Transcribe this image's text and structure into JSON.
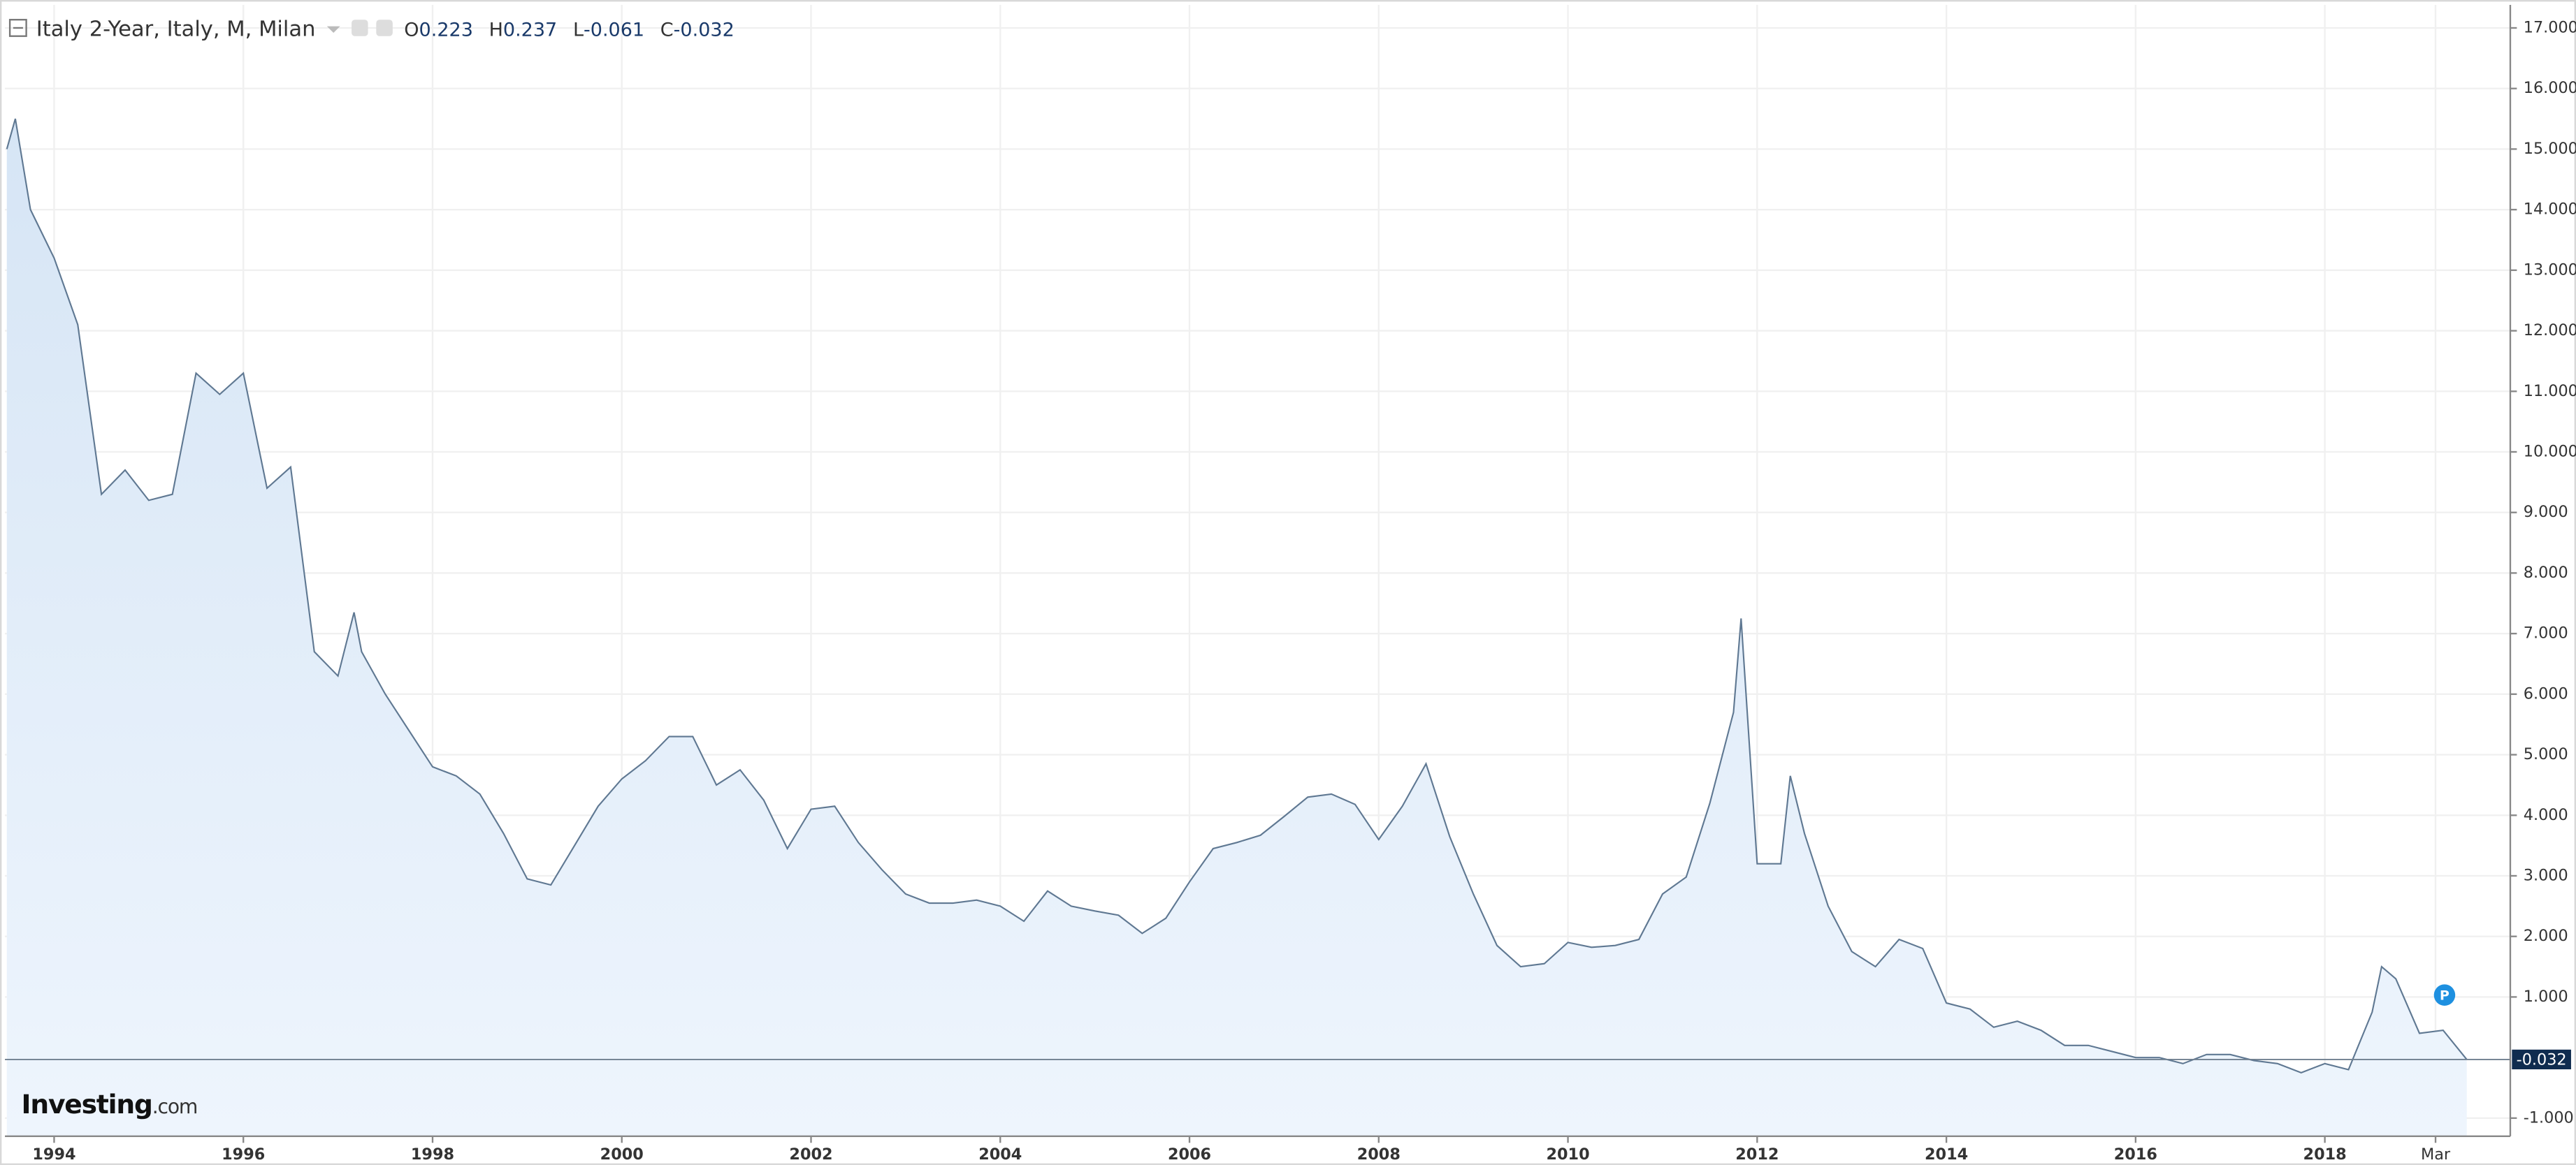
{
  "chart_data": {
    "type": "area",
    "title": "Italy 2-Year, Italy, M, Milan",
    "ohlc_labels": [
      "O",
      "H",
      "L",
      "C"
    ],
    "ohlc": [
      0.223,
      0.237,
      -0.061,
      -0.032
    ],
    "logo": [
      "Investing",
      ".com"
    ],
    "badge": "P",
    "color": "#5f7892",
    "fill": "#e3eefa",
    "grid": true,
    "x": [
      1993.5,
      1993.59,
      1993.75,
      1994,
      1994.25,
      1994.5,
      1994.75,
      1995,
      1995.25,
      1995.5,
      1995.75,
      1996,
      1996.25,
      1996.5,
      1996.75,
      1997,
      1997.17,
      1997.25,
      1997.5,
      1997.75,
      1998,
      1998.25,
      1998.5,
      1998.75,
      1999,
      1999.25,
      1999.5,
      1999.75,
      2000,
      2000.25,
      2000.5,
      2000.75,
      2001,
      2001.25,
      2001.5,
      2001.75,
      2002,
      2002.25,
      2002.5,
      2002.75,
      2003,
      2003.25,
      2003.5,
      2003.75,
      2004,
      2004.25,
      2004.5,
      2004.75,
      2005,
      2005.25,
      2005.5,
      2005.75,
      2006,
      2006.25,
      2006.5,
      2006.75,
      2007,
      2007.25,
      2007.5,
      2007.75,
      2008,
      2008.25,
      2008.5,
      2008.75,
      2009,
      2009.25,
      2009.5,
      2009.75,
      2010,
      2010.25,
      2010.5,
      2010.75,
      2011,
      2011.25,
      2011.5,
      2011.75,
      2011.83,
      2012,
      2012.25,
      2012.35,
      2012.5,
      2012.75,
      2013,
      2013.25,
      2013.5,
      2013.75,
      2014,
      2014.25,
      2014.5,
      2014.75,
      2015,
      2015.25,
      2015.5,
      2015.75,
      2016,
      2016.25,
      2016.5,
      2016.75,
      2017,
      2017.25,
      2017.5,
      2017.75,
      2018,
      2018.25,
      2018.5,
      2018.6,
      2018.75,
      2019,
      2019.25,
      2019.5
    ],
    "values": [
      15.0,
      15.5,
      14.0,
      13.2,
      12.1,
      9.3,
      9.7,
      9.2,
      9.3,
      11.3,
      10.95,
      11.3,
      9.4,
      9.75,
      6.7,
      6.3,
      7.35,
      6.7,
      6.0,
      5.4,
      4.8,
      4.65,
      4.35,
      3.7,
      2.95,
      2.85,
      3.5,
      4.15,
      4.6,
      4.9,
      5.3,
      5.3,
      4.5,
      4.75,
      4.25,
      3.45,
      4.1,
      4.15,
      3.55,
      3.1,
      2.7,
      2.55,
      2.55,
      2.6,
      2.5,
      2.25,
      2.75,
      2.5,
      2.42,
      2.35,
      2.05,
      2.3,
      2.9,
      3.45,
      3.55,
      3.67,
      3.98,
      4.3,
      4.35,
      4.18,
      3.6,
      4.15,
      4.85,
      3.65,
      2.7,
      1.85,
      1.5,
      1.55,
      1.9,
      1.82,
      1.85,
      1.95,
      2.7,
      2.98,
      4.2,
      5.7,
      7.25,
      3.2,
      3.2,
      4.65,
      3.7,
      2.5,
      1.75,
      1.5,
      1.95,
      1.8,
      0.9,
      0.8,
      0.5,
      0.6,
      0.45,
      0.2,
      0.2,
      0.1,
      0.0,
      0.0,
      -0.1,
      0.05,
      0.05,
      -0.05,
      -0.1,
      -0.25,
      -0.1,
      -0.2,
      0.75,
      1.5,
      1.3,
      0.4,
      0.45,
      -0.032
    ],
    "xlim": [
      1993.48,
      2019.96
    ],
    "ylim": [
      -1.3,
      17.38
    ],
    "xticks": [
      1994,
      1996,
      1998,
      2000,
      2002,
      2004,
      2006,
      2008,
      2010,
      2012,
      2014,
      2016,
      2018,
      {
        "value": 2019.17,
        "label": "Mar"
      }
    ],
    "yticks": [
      {
        "value": -1,
        "label": "-1.000"
      },
      {
        "value": 1,
        "label": "1.000"
      },
      {
        "value": 2,
        "label": "2.000"
      },
      {
        "value": 3,
        "label": "3.000"
      },
      {
        "value": 4,
        "label": "4.000"
      },
      {
        "value": 5,
        "label": "5.000"
      },
      {
        "value": 6,
        "label": "6.000"
      },
      {
        "value": 7,
        "label": "7.000"
      },
      {
        "value": 8,
        "label": "8.000"
      },
      {
        "value": 9,
        "label": "9.000"
      },
      {
        "value": 10,
        "label": "10.000"
      },
      {
        "value": 11,
        "label": "11.000"
      },
      {
        "value": 12,
        "label": "12.000"
      },
      {
        "value": 13,
        "label": "13.000"
      },
      {
        "value": 14,
        "label": "14.000"
      },
      {
        "value": 15,
        "label": "15.000"
      },
      {
        "value": 16,
        "label": "16.000"
      },
      {
        "value": 17,
        "label": "17.000"
      }
    ]
  }
}
